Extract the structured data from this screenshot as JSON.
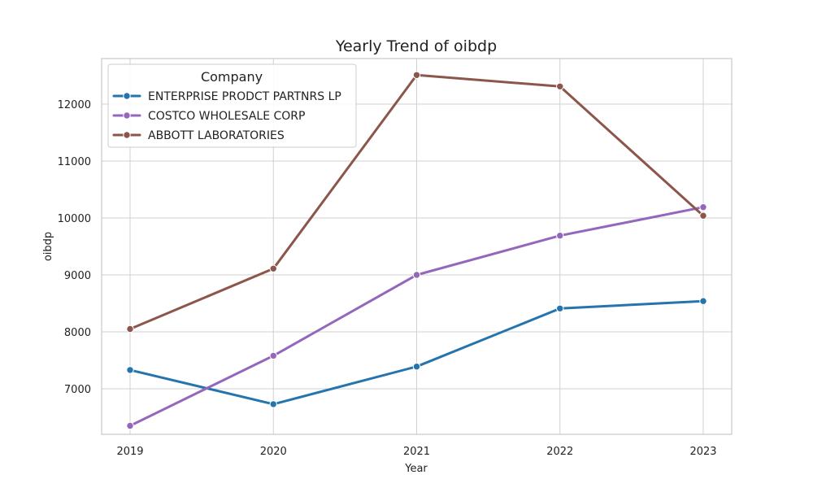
{
  "chart_data": {
    "type": "line",
    "title": "Yearly Trend of oibdp",
    "xlabel": "Year",
    "ylabel": "oibdp",
    "x": [
      "2019",
      "2020",
      "2021",
      "2022",
      "2023"
    ],
    "ylim": [
      6200,
      12800
    ],
    "yticks": [
      7000,
      8000,
      9000,
      10000,
      11000,
      12000
    ],
    "grid": true,
    "legend": {
      "title": "Company",
      "placement": "top-left"
    },
    "series": [
      {
        "name": "ENTERPRISE PRODCT PARTNRS LP",
        "color": "#2474ae",
        "values": [
          7330,
          6730,
          7390,
          8410,
          8540
        ]
      },
      {
        "name": "COSTCO WHOLESALE CORP",
        "color": "#9467bd",
        "values": [
          6350,
          7580,
          9000,
          9690,
          10190
        ]
      },
      {
        "name": "ABBOTT LABORATORIES",
        "color": "#8c564b",
        "values": [
          8050,
          9110,
          12510,
          12310,
          10040
        ]
      }
    ]
  }
}
